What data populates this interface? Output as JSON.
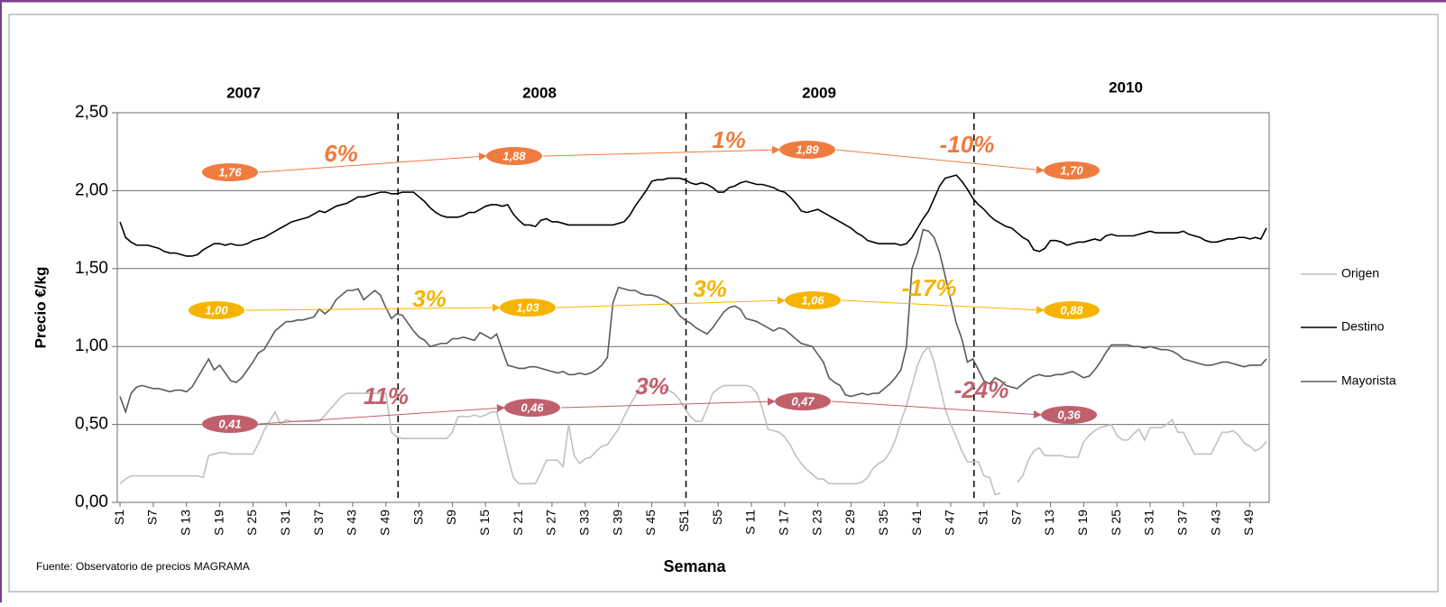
{
  "chart_data": {
    "type": "line",
    "year_labels": [
      "2007",
      "2008",
      "2009",
      "2010"
    ],
    "ylabel": "Precio €/kg",
    "xlabel": "Semana",
    "source": "Fuente: Observatorio de precios MAGRAMA",
    "ylim": [
      0,
      2.5
    ],
    "yticks": [
      {
        "value": 0,
        "label": "0,00"
      },
      {
        "value": 0.5,
        "label": "0,50"
      },
      {
        "value": 1,
        "label": "1,00"
      },
      {
        "value": 1.5,
        "label": "1,50"
      },
      {
        "value": 2,
        "label": "2,00"
      },
      {
        "value": 2.5,
        "label": "2,50"
      }
    ],
    "grid": true,
    "legend": "right",
    "categories": [
      "S1",
      null,
      null,
      null,
      null,
      null,
      "S7",
      null,
      null,
      null,
      null,
      null,
      "S 13",
      null,
      null,
      null,
      null,
      null,
      "S 19",
      null,
      null,
      null,
      null,
      null,
      "S 25",
      null,
      null,
      null,
      null,
      null,
      "S 31",
      null,
      null,
      null,
      null,
      null,
      "S 37",
      null,
      null,
      null,
      null,
      null,
      "S 43",
      null,
      null,
      null,
      null,
      null,
      "S 49",
      null,
      null,
      null,
      null,
      null,
      "S3",
      null,
      null,
      null,
      null,
      null,
      "S9",
      null,
      null,
      null,
      null,
      null,
      "S 15",
      null,
      null,
      null,
      null,
      null,
      "S 21",
      null,
      null,
      null,
      null,
      null,
      "S 27",
      null,
      null,
      null,
      null,
      null,
      "S 33",
      null,
      null,
      null,
      null,
      null,
      "S 39",
      null,
      null,
      null,
      null,
      null,
      "S 45",
      null,
      null,
      null,
      null,
      null,
      "S51",
      null,
      null,
      null,
      null,
      null,
      "S5",
      null,
      null,
      null,
      null,
      null,
      "S 11",
      null,
      null,
      null,
      null,
      null,
      "S 17",
      null,
      null,
      null,
      null,
      null,
      "S 23",
      null,
      null,
      null,
      null,
      null,
      "S 29",
      null,
      null,
      null,
      null,
      null,
      "S 35",
      null,
      null,
      null,
      null,
      null,
      "S 41",
      null,
      null,
      null,
      null,
      null,
      "S 47",
      null,
      null,
      null,
      null,
      null,
      "S1",
      null,
      null,
      null,
      null,
      null,
      "S7",
      null,
      null,
      null,
      null,
      null,
      "S 13",
      null,
      null,
      null,
      null,
      null,
      "S 19",
      null,
      null,
      null,
      null,
      null,
      "S 25",
      null,
      null,
      null,
      null,
      null,
      "S 31",
      null,
      null,
      null,
      null,
      null,
      "S 37",
      null,
      null,
      null,
      null,
      null,
      "S 43",
      null,
      null,
      null,
      null,
      null,
      "S 49",
      null,
      null,
      null
    ],
    "series": [
      {
        "name": "Origen",
        "color": "#c0c0c0",
        "values": [
          0.12,
          0.15,
          0.17,
          0.17,
          0.17,
          0.17,
          0.17,
          0.17,
          0.17,
          0.17,
          0.17,
          0.17,
          0.17,
          0.17,
          0.17,
          0.16,
          0.3,
          0.31,
          0.32,
          0.32,
          0.31,
          0.31,
          0.31,
          0.31,
          0.31,
          0.38,
          0.46,
          0.52,
          0.58,
          0.5,
          0.53,
          0.52,
          0.52,
          0.52,
          0.52,
          0.52,
          0.52,
          0.56,
          0.6,
          0.64,
          0.68,
          0.7,
          0.7,
          0.7,
          0.7,
          0.7,
          0.7,
          0.7,
          0.7,
          0.45,
          0.42,
          0.41,
          0.41,
          0.41,
          0.41,
          0.41,
          0.41,
          0.41,
          0.41,
          0.41,
          0.45,
          0.55,
          0.55,
          0.55,
          0.56,
          0.55,
          0.56,
          0.58,
          0.58,
          0.45,
          0.3,
          0.16,
          0.12,
          0.12,
          0.12,
          0.12,
          0.19,
          0.27,
          0.27,
          0.27,
          0.23,
          0.5,
          0.3,
          0.25,
          0.28,
          0.29,
          0.33,
          0.36,
          0.37,
          0.42,
          0.47,
          0.55,
          0.62,
          0.68,
          0.75,
          0.75,
          0.75,
          0.75,
          0.73,
          0.72,
          0.7,
          0.66,
          0.6,
          0.55,
          0.52,
          0.52,
          0.6,
          0.7,
          0.73,
          0.75,
          0.75,
          0.75,
          0.75,
          0.75,
          0.74,
          0.7,
          0.6,
          0.47,
          0.46,
          0.45,
          0.42,
          0.37,
          0.3,
          0.25,
          0.21,
          0.18,
          0.15,
          0.15,
          0.12,
          0.12,
          0.12,
          0.12,
          0.12,
          0.12,
          0.13,
          0.16,
          0.22,
          0.25,
          0.27,
          0.32,
          0.4,
          0.52,
          0.62,
          0.75,
          0.88,
          0.96,
          1.0,
          0.9,
          0.75,
          0.6,
          0.5,
          0.42,
          0.33,
          0.26,
          0.26,
          0.26,
          0.17,
          0.16,
          0.05,
          0.06,
          null,
          null,
          0.13,
          0.17,
          0.27,
          0.33,
          0.35,
          0.3,
          0.3,
          0.3,
          0.3,
          0.29,
          0.29,
          0.29,
          0.39,
          0.43,
          0.46,
          0.48,
          0.49,
          0.5,
          0.43,
          0.4,
          0.4,
          0.44,
          0.47,
          0.4,
          0.48,
          0.48,
          0.48,
          0.5,
          0.53,
          0.45,
          0.45,
          0.38,
          0.31,
          0.31,
          0.31,
          0.31,
          0.38,
          0.45,
          0.45,
          0.46,
          0.43,
          0.38,
          0.36,
          0.33,
          0.35,
          0.39
        ]
      },
      {
        "name": "Destino",
        "color": "#000000",
        "values": [
          1.8,
          1.7,
          1.67,
          1.65,
          1.65,
          1.65,
          1.64,
          1.63,
          1.61,
          1.6,
          1.6,
          1.59,
          1.58,
          1.58,
          1.59,
          1.62,
          1.64,
          1.66,
          1.66,
          1.65,
          1.66,
          1.65,
          1.65,
          1.66,
          1.68,
          1.69,
          1.7,
          1.72,
          1.74,
          1.76,
          1.78,
          1.8,
          1.81,
          1.82,
          1.83,
          1.85,
          1.87,
          1.86,
          1.88,
          1.9,
          1.91,
          1.92,
          1.94,
          1.96,
          1.96,
          1.97,
          1.98,
          1.99,
          1.99,
          1.98,
          1.98,
          1.99,
          1.99,
          1.99,
          1.96,
          1.93,
          1.89,
          1.86,
          1.84,
          1.83,
          1.83,
          1.83,
          1.84,
          1.86,
          1.86,
          1.88,
          1.9,
          1.91,
          1.91,
          1.9,
          1.91,
          1.85,
          1.81,
          1.78,
          1.78,
          1.77,
          1.81,
          1.82,
          1.8,
          1.8,
          1.79,
          1.78,
          1.78,
          1.78,
          1.78,
          1.78,
          1.78,
          1.78,
          1.78,
          1.78,
          1.79,
          1.8,
          1.84,
          1.9,
          1.95,
          2.0,
          2.06,
          2.07,
          2.07,
          2.08,
          2.08,
          2.08,
          2.07,
          2.05,
          2.04,
          2.05,
          2.04,
          2.02,
          1.99,
          1.99,
          2.02,
          2.03,
          2.05,
          2.06,
          2.05,
          2.04,
          2.04,
          2.03,
          2.02,
          2.0,
          1.99,
          1.96,
          1.92,
          1.87,
          1.86,
          1.87,
          1.88,
          1.86,
          1.84,
          1.82,
          1.8,
          1.78,
          1.76,
          1.73,
          1.71,
          1.68,
          1.67,
          1.66,
          1.66,
          1.66,
          1.66,
          1.65,
          1.66,
          1.7,
          1.76,
          1.82,
          1.87,
          1.95,
          2.03,
          2.08,
          2.09,
          2.1,
          2.06,
          2.01,
          1.95,
          1.91,
          1.88,
          1.84,
          1.81,
          1.79,
          1.77,
          1.76,
          1.73,
          1.7,
          1.68,
          1.62,
          1.61,
          1.63,
          1.68,
          1.68,
          1.67,
          1.65,
          1.66,
          1.67,
          1.67,
          1.68,
          1.69,
          1.68,
          1.71,
          1.72,
          1.71,
          1.71,
          1.71,
          1.71,
          1.72,
          1.73,
          1.74,
          1.73,
          1.73,
          1.73,
          1.73,
          1.73,
          1.74,
          1.72,
          1.71,
          1.7,
          1.68,
          1.67,
          1.67,
          1.68,
          1.69,
          1.69,
          1.7,
          1.7,
          1.69,
          1.7,
          1.69,
          1.76
        ]
      },
      {
        "name": "Mayorista",
        "color": "#5a5a5a",
        "values": [
          0.68,
          0.58,
          0.7,
          0.74,
          0.75,
          0.74,
          0.73,
          0.73,
          0.72,
          0.71,
          0.72,
          0.72,
          0.71,
          0.74,
          0.8,
          0.86,
          0.92,
          0.85,
          0.88,
          0.83,
          0.78,
          0.77,
          0.8,
          0.85,
          0.9,
          0.96,
          0.98,
          1.04,
          1.1,
          1.13,
          1.16,
          1.16,
          1.17,
          1.17,
          1.18,
          1.19,
          1.24,
          1.21,
          1.24,
          1.3,
          1.33,
          1.36,
          1.36,
          1.37,
          1.3,
          1.33,
          1.36,
          1.33,
          1.25,
          1.18,
          1.21,
          1.2,
          1.15,
          1.1,
          1.06,
          1.04,
          1.0,
          1.01,
          1.02,
          1.02,
          1.05,
          1.05,
          1.06,
          1.05,
          1.04,
          1.09,
          1.07,
          1.05,
          1.08,
          0.98,
          0.88,
          0.87,
          0.86,
          0.86,
          0.87,
          0.87,
          0.86,
          0.85,
          0.84,
          0.83,
          0.84,
          0.82,
          0.82,
          0.83,
          0.82,
          0.83,
          0.85,
          0.88,
          0.93,
          1.28,
          1.38,
          1.37,
          1.36,
          1.36,
          1.34,
          1.33,
          1.33,
          1.32,
          1.3,
          1.28,
          1.25,
          1.2,
          1.17,
          1.15,
          1.12,
          1.1,
          1.08,
          1.12,
          1.17,
          1.22,
          1.25,
          1.26,
          1.24,
          1.18,
          1.17,
          1.16,
          1.14,
          1.12,
          1.1,
          1.12,
          1.11,
          1.08,
          1.05,
          1.02,
          1.01,
          1.0,
          0.95,
          0.9,
          0.8,
          0.77,
          0.75,
          0.69,
          0.68,
          0.69,
          0.7,
          0.69,
          0.7,
          0.7,
          0.73,
          0.76,
          0.8,
          0.85,
          1.0,
          1.5,
          1.6,
          1.75,
          1.74,
          1.7,
          1.6,
          1.45,
          1.3,
          1.15,
          1.05,
          0.9,
          0.92,
          0.85,
          0.78,
          0.76,
          0.8,
          0.78,
          0.75,
          0.74,
          0.73,
          0.76,
          0.79,
          0.81,
          0.82,
          0.81,
          0.81,
          0.82,
          0.82,
          0.83,
          0.84,
          0.82,
          0.8,
          0.81,
          0.85,
          0.9,
          0.96,
          1.01,
          1.01,
          1.01,
          1.01,
          1.0,
          1.0,
          0.99,
          1.0,
          0.99,
          0.98,
          0.98,
          0.97,
          0.95,
          0.92,
          0.91,
          0.9,
          0.89,
          0.88,
          0.88,
          0.89,
          0.9,
          0.9,
          0.89,
          0.88,
          0.87,
          0.88,
          0.88,
          0.88,
          0.92
        ]
      }
    ],
    "annotations": [
      {
        "color": "#f07b3f",
        "labels": [
          "1,76",
          "1,88",
          "1,89",
          "1,70"
        ],
        "changes": [
          "6%",
          "1%",
          "-10%"
        ]
      },
      {
        "color": "#f6b400",
        "labels": [
          "1,00",
          "1,03",
          "1,06",
          "0,88"
        ],
        "changes": [
          "3%",
          "3%",
          "-17%"
        ]
      },
      {
        "color": "#c0606c",
        "labels": [
          "0,41",
          "0,46",
          "0,47",
          "0,36"
        ],
        "changes": [
          "11%",
          "3%",
          "-24%"
        ]
      }
    ]
  }
}
